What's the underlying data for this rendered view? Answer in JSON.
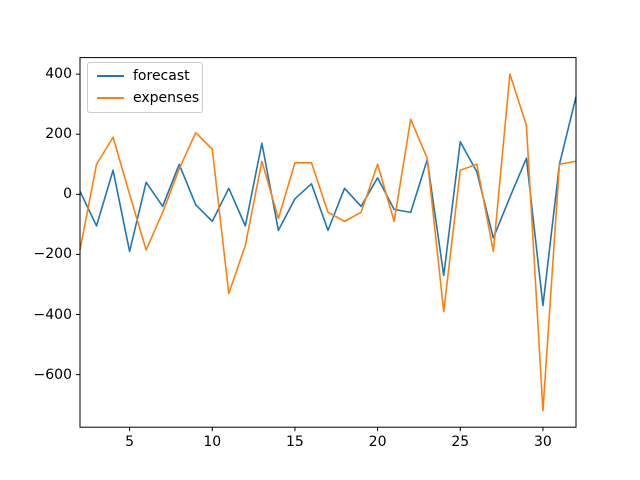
{
  "chart_data": {
    "type": "line",
    "title": "",
    "xlabel": "",
    "ylabel": "",
    "grid": false,
    "legend_position": "upper left",
    "xlim": [
      2,
      32
    ],
    "ylim": [
      -775,
      455
    ],
    "xticks": [
      5,
      10,
      15,
      20,
      25,
      30
    ],
    "yticks": [
      400,
      200,
      0,
      -200,
      -400,
      -600
    ],
    "x": [
      2,
      3,
      4,
      5,
      6,
      7,
      8,
      9,
      10,
      11,
      12,
      13,
      14,
      15,
      16,
      17,
      18,
      19,
      20,
      21,
      22,
      23,
      24,
      25,
      26,
      27,
      28,
      29,
      30,
      31,
      32
    ],
    "series": [
      {
        "name": "forecast",
        "color": "#1f77b4",
        "values": [
          10,
          -105,
          80,
          -190,
          40,
          -40,
          100,
          -35,
          -90,
          20,
          -105,
          170,
          -120,
          -15,
          35,
          -120,
          20,
          -40,
          55,
          -50,
          -60,
          115,
          -270,
          175,
          75,
          -145,
          -10,
          120,
          -370,
          100,
          325
        ]
      },
      {
        "name": "expenses",
        "color": "#ff7f0e",
        "values": [
          -185,
          100,
          190,
          0,
          -185,
          -60,
          85,
          205,
          150,
          -330,
          -170,
          110,
          -80,
          105,
          105,
          -60,
          -90,
          -60,
          100,
          -90,
          250,
          120,
          -390,
          80,
          100,
          -190,
          400,
          230,
          -720,
          100,
          110
        ]
      }
    ]
  },
  "axes": {
    "border_color": "#000000",
    "tick_color": "#000000",
    "background": "#ffffff"
  }
}
